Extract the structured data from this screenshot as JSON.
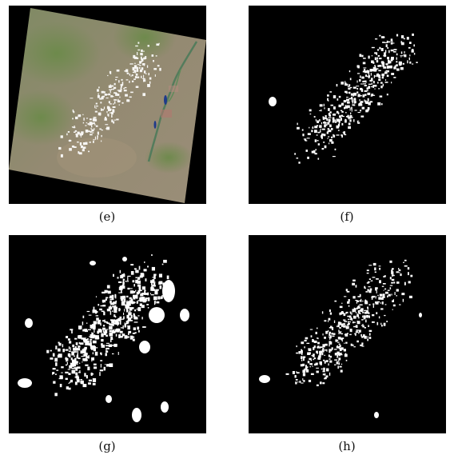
{
  "panels": [
    {
      "id": "e",
      "caption": "(e)",
      "kind": "satellite-rgb-image"
    },
    {
      "id": "f",
      "caption": "(f)",
      "kind": "cloud-mask-reference"
    },
    {
      "id": "g",
      "caption": "(g)",
      "kind": "cloud-mask-result"
    },
    {
      "id": "h",
      "caption": "(h)",
      "kind": "cloud-mask-result"
    }
  ],
  "colors": {
    "background": "#000000",
    "mask": "#ffffff",
    "terrain": "#8d8a6e",
    "vegetation": "#6f8a4e",
    "water": "#1f3a8a"
  }
}
